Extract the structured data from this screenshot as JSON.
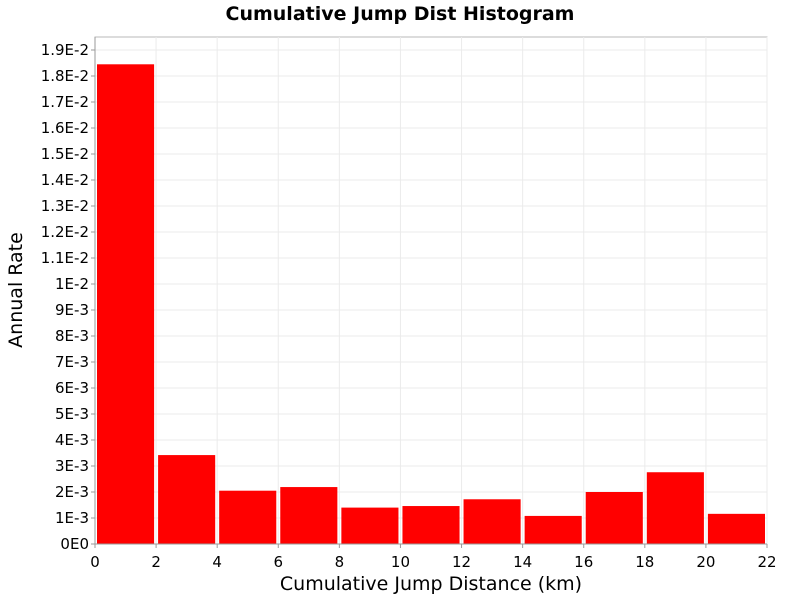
{
  "chart_data": {
    "type": "bar",
    "title": "Cumulative Jump Dist Histogram",
    "xlabel": "Cumulative Jump Distance (km)",
    "ylabel": "Annual Rate",
    "bar_color": "#ff0000",
    "xlim": [
      0,
      22
    ],
    "ylim": [
      0,
      0.0195
    ],
    "x_ticks": [
      0,
      2,
      4,
      6,
      8,
      10,
      12,
      14,
      16,
      18,
      20,
      22
    ],
    "x_tick_labels": [
      "0",
      "2",
      "4",
      "6",
      "8",
      "10",
      "12",
      "14",
      "16",
      "18",
      "20",
      "22"
    ],
    "y_ticks": [
      0,
      0.001,
      0.002,
      0.003,
      0.004,
      0.005,
      0.006,
      0.007,
      0.008,
      0.009,
      0.01,
      0.011,
      0.012,
      0.013,
      0.014,
      0.015,
      0.016,
      0.017,
      0.018,
      0.019
    ],
    "y_tick_labels": [
      "0E0",
      "1E-3",
      "2E-3",
      "3E-3",
      "4E-3",
      "5E-3",
      "6E-3",
      "7E-3",
      "8E-3",
      "9E-3",
      "1E-2",
      "1.1E-2",
      "1.2E-2",
      "1.3E-2",
      "1.4E-2",
      "1.5E-2",
      "1.6E-2",
      "1.7E-2",
      "1.8E-2",
      "1.9E-2"
    ],
    "bin_width": 2,
    "bins": [
      {
        "x": 1,
        "value": 0.01845
      },
      {
        "x": 3,
        "value": 0.00342
      },
      {
        "x": 5,
        "value": 0.00205
      },
      {
        "x": 7,
        "value": 0.00219
      },
      {
        "x": 9,
        "value": 0.0014
      },
      {
        "x": 11,
        "value": 0.00146
      },
      {
        "x": 13,
        "value": 0.00172
      },
      {
        "x": 15,
        "value": 0.00108
      },
      {
        "x": 17,
        "value": 0.002
      },
      {
        "x": 19,
        "value": 0.00276
      },
      {
        "x": 21,
        "value": 0.00116
      }
    ]
  }
}
